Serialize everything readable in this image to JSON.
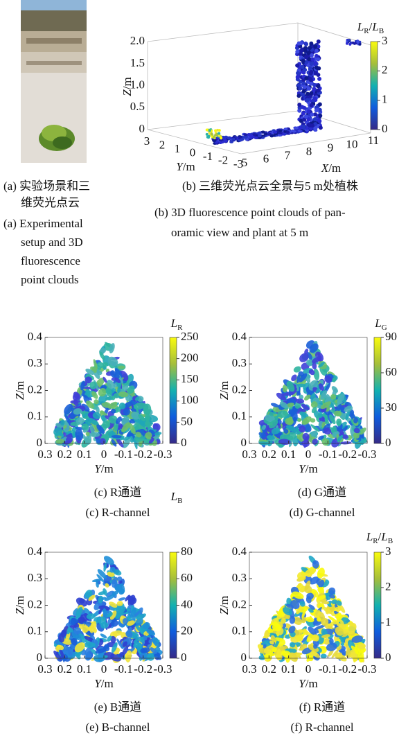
{
  "panel_a": {
    "caption_cn": [
      "(a) 实验场景和三",
      "维荧光点云"
    ],
    "caption_en": [
      "(a) Experimental",
      "setup and 3D",
      "fluorescence",
      "point clouds"
    ]
  },
  "panel_b": {
    "caption_cn": "(b) 三维荧光点云全景与5 m处植株",
    "caption_en": [
      "(b) 3D fluorescence point clouds of pan-",
      "oramic view and plant at 5 m"
    ],
    "zticks": [
      "0",
      "0.5",
      "1.0",
      "1.5",
      "2.0"
    ],
    "yticks": [
      "3",
      "2",
      "1",
      "0",
      "-1",
      "-2",
      "-3"
    ],
    "xticks": [
      "5",
      "6",
      "7",
      "8",
      "9",
      "10",
      "11"
    ],
    "zlabel": [
      "Z",
      "/m"
    ],
    "ylabel": [
      "Y",
      "/m"
    ],
    "xlabel": [
      "X",
      "/m"
    ],
    "colorbar_ticks": [
      "3",
      "2",
      "1",
      "0"
    ],
    "colorbar_label": [
      "L",
      "R",
      "/",
      "L",
      "B"
    ]
  },
  "panel_c": {
    "caption_cn": "(c) R通道",
    "caption_en": "(c) R-channel",
    "yticks": [
      "0",
      "0.1",
      "0.2",
      "0.3",
      "0.4"
    ],
    "xticks": [
      "0.3",
      "0.2",
      "0.1",
      "0",
      "-0.1",
      "-0.2",
      "-0.3"
    ],
    "xlabel": [
      "Y",
      "/m"
    ],
    "ylabel": [
      "Z",
      "/m"
    ],
    "colorbar_ticks": [
      "250",
      "200",
      "150",
      "100",
      "50",
      "0"
    ],
    "colorbar_label": [
      "L",
      "R"
    ]
  },
  "panel_d": {
    "caption_cn": "(d) G通道",
    "caption_en": "(d) G-channel",
    "yticks": [
      "0",
      "0.1",
      "0.2",
      "0.3",
      "0.4"
    ],
    "xticks": [
      "0.3",
      "0.2",
      "0.1",
      "0",
      "-0.1",
      "-0.2",
      "-0.3"
    ],
    "xlabel": [
      "Y",
      "/m"
    ],
    "ylabel": [
      "Z",
      "/m"
    ],
    "colorbar_ticks": [
      "90",
      "60",
      "30",
      "0"
    ],
    "colorbar_label": [
      "L",
      "G"
    ]
  },
  "panel_e": {
    "caption_cn": "(e) B通道",
    "caption_en": "(e) B-channel",
    "yticks": [
      "0",
      "0.1",
      "0.2",
      "0.3",
      "0.4"
    ],
    "xticks": [
      "0.3",
      "0.2",
      "0.1",
      "0",
      "-0.1",
      "-0.2",
      "-0.3"
    ],
    "xlabel": [
      "Y",
      "/m"
    ],
    "ylabel": [
      "Z",
      "/m"
    ],
    "colorbar_ticks": [
      "80",
      "60",
      "40",
      "20",
      "0"
    ],
    "colorbar_label": [
      "L",
      "B"
    ]
  },
  "panel_f": {
    "caption_cn": "(f) R通道",
    "caption_en": "(f) R-channel",
    "yticks": [
      "0",
      "0.1",
      "0.2",
      "0.3",
      "0.4"
    ],
    "xticks": [
      "0.3",
      "0.2",
      "0.1",
      "0",
      "-0.1",
      "-0.2",
      "-0.3"
    ],
    "xlabel": [
      "Y",
      "/m"
    ],
    "ylabel": [
      "Z",
      "/m"
    ],
    "colorbar_ticks": [
      "3",
      "2",
      "1",
      "0"
    ],
    "colorbar_label": [
      "L",
      "R",
      "/",
      "L",
      "B"
    ]
  }
}
